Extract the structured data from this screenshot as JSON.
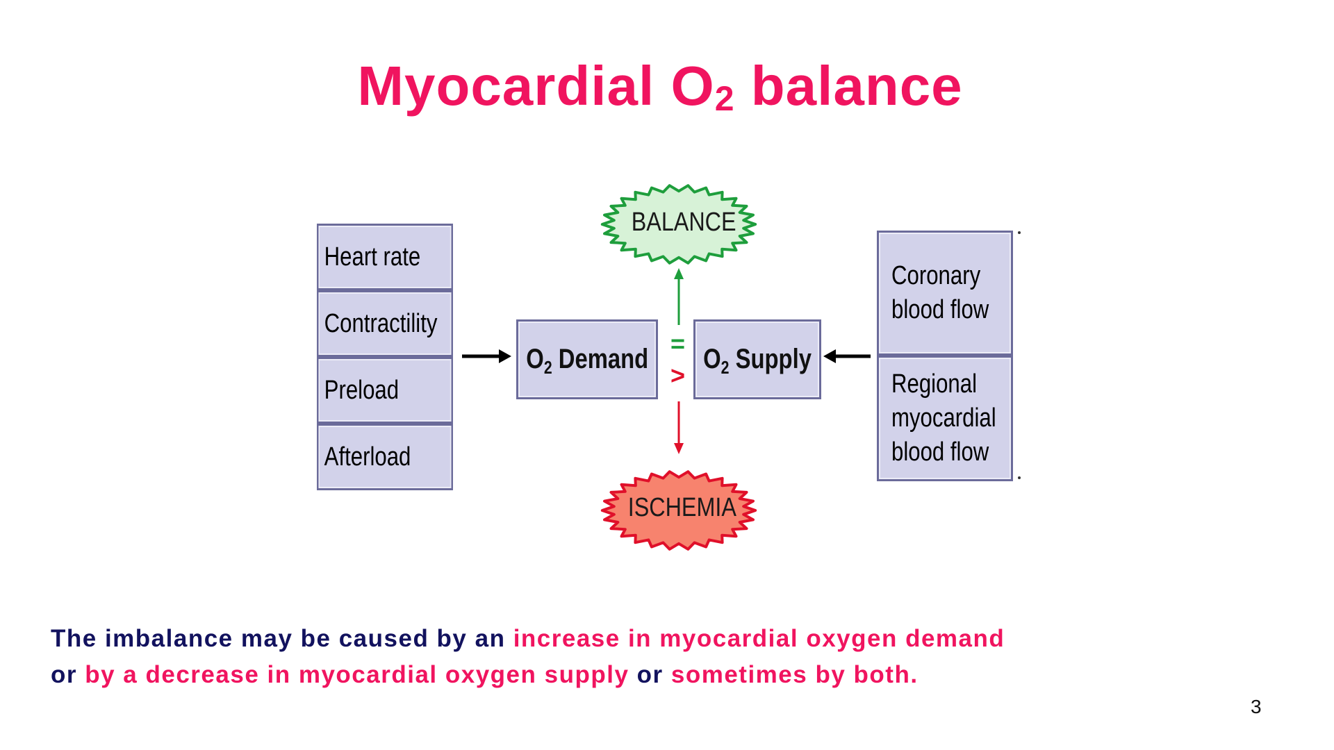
{
  "title": {
    "main": "Myocardial O",
    "sub": "2",
    "rest": " balance"
  },
  "diagram": {
    "demand_factors": [
      "Heart rate",
      "Contractility",
      "Preload",
      "Afterload"
    ],
    "demand_box": {
      "prefix": "O",
      "sub": "2",
      "suffix": " Demand"
    },
    "supply_box": {
      "prefix": "O",
      "sub": "2",
      "suffix": " Supply"
    },
    "supply_factors": [
      {
        "line1": "Coronary",
        "line2": "blood flow",
        "line3": ""
      },
      {
        "line1": "Regional",
        "line2": "myocardial",
        "line3": "blood flow"
      }
    ],
    "balance_label": "BALANCE",
    "ischemia_label": "ISCHEMIA",
    "equal_symbol": "=",
    "greater_symbol": ">",
    "colors": {
      "balance_fill": "#d7f2d7",
      "balance_stroke": "#1e9e3c",
      "ischemia_fill": "#f7836e",
      "ischemia_stroke": "#e0102a",
      "box_fill": "#d2d2ea",
      "box_stroke": "#6b6b9a"
    }
  },
  "footer": {
    "part1": "The imbalance may be caused by an ",
    "part2": "increase in myocardial oxygen demand",
    "part3": "or ",
    "part4": "by a decrease in myocardial oxygen supply",
    "part5": " or ",
    "part6": "sometimes by both."
  },
  "page_number": "3",
  "colors": {
    "title": "#f0145f",
    "footer_dark": "#12125e",
    "footer_highlight": "#f0145f"
  }
}
